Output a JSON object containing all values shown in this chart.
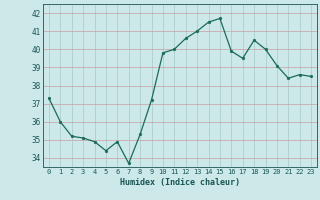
{
  "x": [
    0,
    1,
    2,
    3,
    4,
    5,
    6,
    7,
    8,
    9,
    10,
    11,
    12,
    13,
    14,
    15,
    16,
    17,
    18,
    19,
    20,
    21,
    22,
    23
  ],
  "y": [
    37.3,
    36.0,
    35.2,
    35.1,
    34.9,
    34.4,
    34.9,
    33.7,
    35.3,
    37.2,
    39.8,
    40.0,
    40.6,
    41.0,
    41.5,
    41.7,
    39.9,
    39.5,
    40.5,
    40.0,
    39.1,
    38.4,
    38.6,
    38.5
  ],
  "bg_color": "#cce8e8",
  "line_color": "#1a6b5a",
  "marker_color": "#1a6b5a",
  "grid_color_h": "#c8a0a0",
  "grid_color_v": "#a8c8c8",
  "xlabel": "Humidex (Indice chaleur)",
  "xlim": [
    -0.5,
    23.5
  ],
  "ylim": [
    33.5,
    42.5
  ],
  "yticks": [
    34,
    35,
    36,
    37,
    38,
    39,
    40,
    41,
    42
  ],
  "xticks": [
    0,
    1,
    2,
    3,
    4,
    5,
    6,
    7,
    8,
    9,
    10,
    11,
    12,
    13,
    14,
    15,
    16,
    17,
    18,
    19,
    20,
    21,
    22,
    23
  ]
}
